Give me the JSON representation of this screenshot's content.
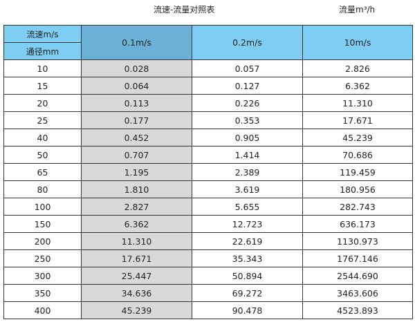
{
  "title": "流速-流量对照表",
  "unit_label": "流量m³/h",
  "header": {
    "velocity_label": "流速m/s",
    "diameter_label": "通径mm",
    "columns": [
      "0.1m/s",
      "0.2m/s",
      "10m/s"
    ]
  },
  "colors": {
    "header": "#7ecef4",
    "header_selected": "#6bb2d6",
    "highlight_column": "#d9d9d9"
  },
  "rows": [
    [
      "10",
      "0.028",
      "0.057",
      "2.826"
    ],
    [
      "15",
      "0.064",
      "0.127",
      "6.362"
    ],
    [
      "20",
      "0.113",
      "0.226",
      "11.310"
    ],
    [
      "25",
      "0.177",
      "0.353",
      "17.671"
    ],
    [
      "40",
      "0.452",
      "0.905",
      "45.239"
    ],
    [
      "50",
      "0.707",
      "1.414",
      "70.686"
    ],
    [
      "65",
      "1.195",
      "2.389",
      "119.459"
    ],
    [
      "80",
      "1.810",
      "3.619",
      "180.956"
    ],
    [
      "100",
      "2.827",
      "5.655",
      "282.743"
    ],
    [
      "150",
      "6.362",
      "12.723",
      "636.173"
    ],
    [
      "200",
      "11.310",
      "22.619",
      "1130.973"
    ],
    [
      "250",
      "17.671",
      "35.343",
      "1767.146"
    ],
    [
      "300",
      "25.447",
      "50.894",
      "2544.690"
    ],
    [
      "350",
      "34.636",
      "69.272",
      "3463.606"
    ],
    [
      "400",
      "45.239",
      "90.478",
      "4523.893"
    ]
  ]
}
